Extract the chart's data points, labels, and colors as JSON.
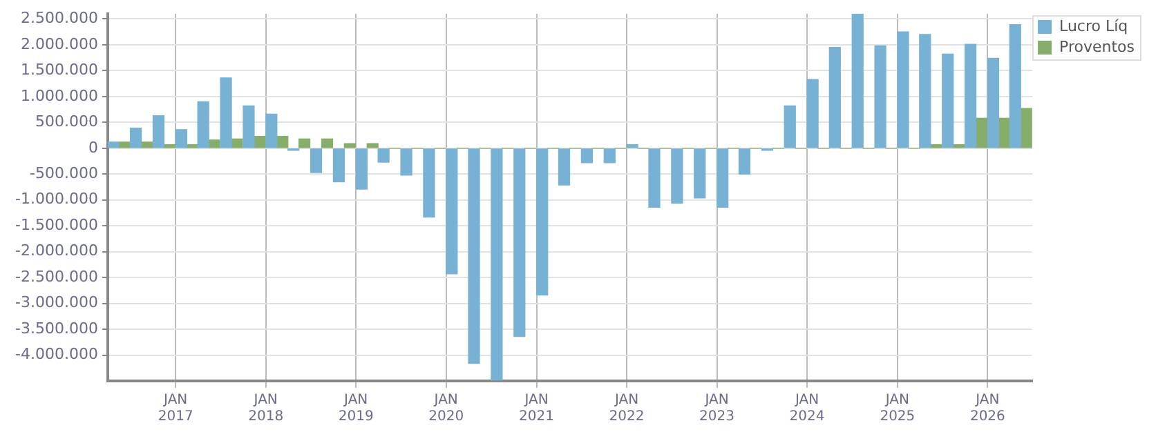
{
  "chart_data": {
    "type": "bar",
    "x": [
      "2016-05-15",
      "2016-08-15",
      "2016-11-15",
      "2017-02-15",
      "2017-05-15",
      "2017-08-15",
      "2017-11-15",
      "2018-02-15",
      "2018-05-15",
      "2018-08-15",
      "2018-11-15",
      "2019-02-15",
      "2019-05-15",
      "2019-08-15",
      "2019-11-15",
      "2020-02-15",
      "2020-05-15",
      "2020-08-15",
      "2020-11-15",
      "2021-02-15",
      "2021-05-15",
      "2021-08-15",
      "2021-11-15",
      "2022-02-15",
      "2022-05-15",
      "2022-08-15",
      "2022-11-15",
      "2023-02-15",
      "2023-05-15",
      "2023-08-15",
      "2023-11-15",
      "2024-02-15",
      "2024-05-15",
      "2024-08-15",
      "2024-11-15",
      "2025-02-15",
      "2025-05-15",
      "2025-08-15",
      "2025-11-15",
      "2026-02-15",
      "2026-05-15"
    ],
    "series": [
      {
        "name": "Lucro Líq",
        "color": "#77b1d4",
        "values": [
          120000,
          390000,
          630000,
          360000,
          900000,
          1360000,
          820000,
          660000,
          -40000,
          -470000,
          -650000,
          -790000,
          -270000,
          -520000,
          -1330000,
          -2430000,
          -4160000,
          -4480000,
          -3640000,
          -2840000,
          -710000,
          -280000,
          -280000,
          70000,
          -1140000,
          -1060000,
          -960000,
          -1140000,
          -500000,
          -40000,
          820000,
          1330000,
          1950000,
          2600000,
          1980000,
          2250000,
          2200000,
          1820000,
          2010000,
          1740000,
          2390000
        ]
      },
      {
        "name": "Proventos",
        "color": "#87ad6a",
        "values": [
          120000,
          120000,
          70000,
          70000,
          160000,
          180000,
          230000,
          230000,
          180000,
          180000,
          90000,
          90000,
          0,
          0,
          0,
          0,
          0,
          0,
          0,
          0,
          0,
          0,
          0,
          0,
          0,
          0,
          0,
          0,
          0,
          0,
          0,
          0,
          0,
          0,
          0,
          0,
          70000,
          70000,
          580000,
          580000,
          770000
        ]
      }
    ],
    "xlim": [
      "2016-04-01",
      "2026-07-01"
    ],
    "xticks": [
      {
        "value": "2017-01-01",
        "label": "JAN 2017"
      },
      {
        "value": "2018-01-01",
        "label": "JAN 2018"
      },
      {
        "value": "2019-01-01",
        "label": "JAN 2019"
      },
      {
        "value": "2020-01-01",
        "label": "JAN 2020"
      },
      {
        "value": "2021-01-01",
        "label": "JAN 2021"
      },
      {
        "value": "2022-01-01",
        "label": "JAN 2022"
      },
      {
        "value": "2023-01-01",
        "label": "JAN 2023"
      },
      {
        "value": "2024-01-01",
        "label": "JAN 2024"
      },
      {
        "value": "2025-01-01",
        "label": "JAN 2025"
      },
      {
        "value": "2026-01-01",
        "label": "JAN 2026"
      }
    ],
    "ylim": [
      -4500000,
      2600000
    ],
    "yticks": [
      {
        "value": -4000000,
        "label": "-4.000.000"
      },
      {
        "value": -3500000,
        "label": "-3.500.000"
      },
      {
        "value": -3000000,
        "label": "-3.000.000"
      },
      {
        "value": -2500000,
        "label": "-2.500.000"
      },
      {
        "value": -2000000,
        "label": "-2.000.000"
      },
      {
        "value": -1500000,
        "label": "-1.500.000"
      },
      {
        "value": -1000000,
        "label": "-1.000.000"
      },
      {
        "value": -500000,
        "label": "-500.000"
      },
      {
        "value": 0,
        "label": "0"
      },
      {
        "value": 500000,
        "label": "500.000"
      },
      {
        "value": 1000000,
        "label": "1.000.000"
      },
      {
        "value": 1500000,
        "label": "1.500.000"
      },
      {
        "value": 2000000,
        "label": "2.000.000"
      },
      {
        "value": 2500000,
        "label": "2.500.000"
      }
    ],
    "grid": true,
    "legend": "top right"
  }
}
